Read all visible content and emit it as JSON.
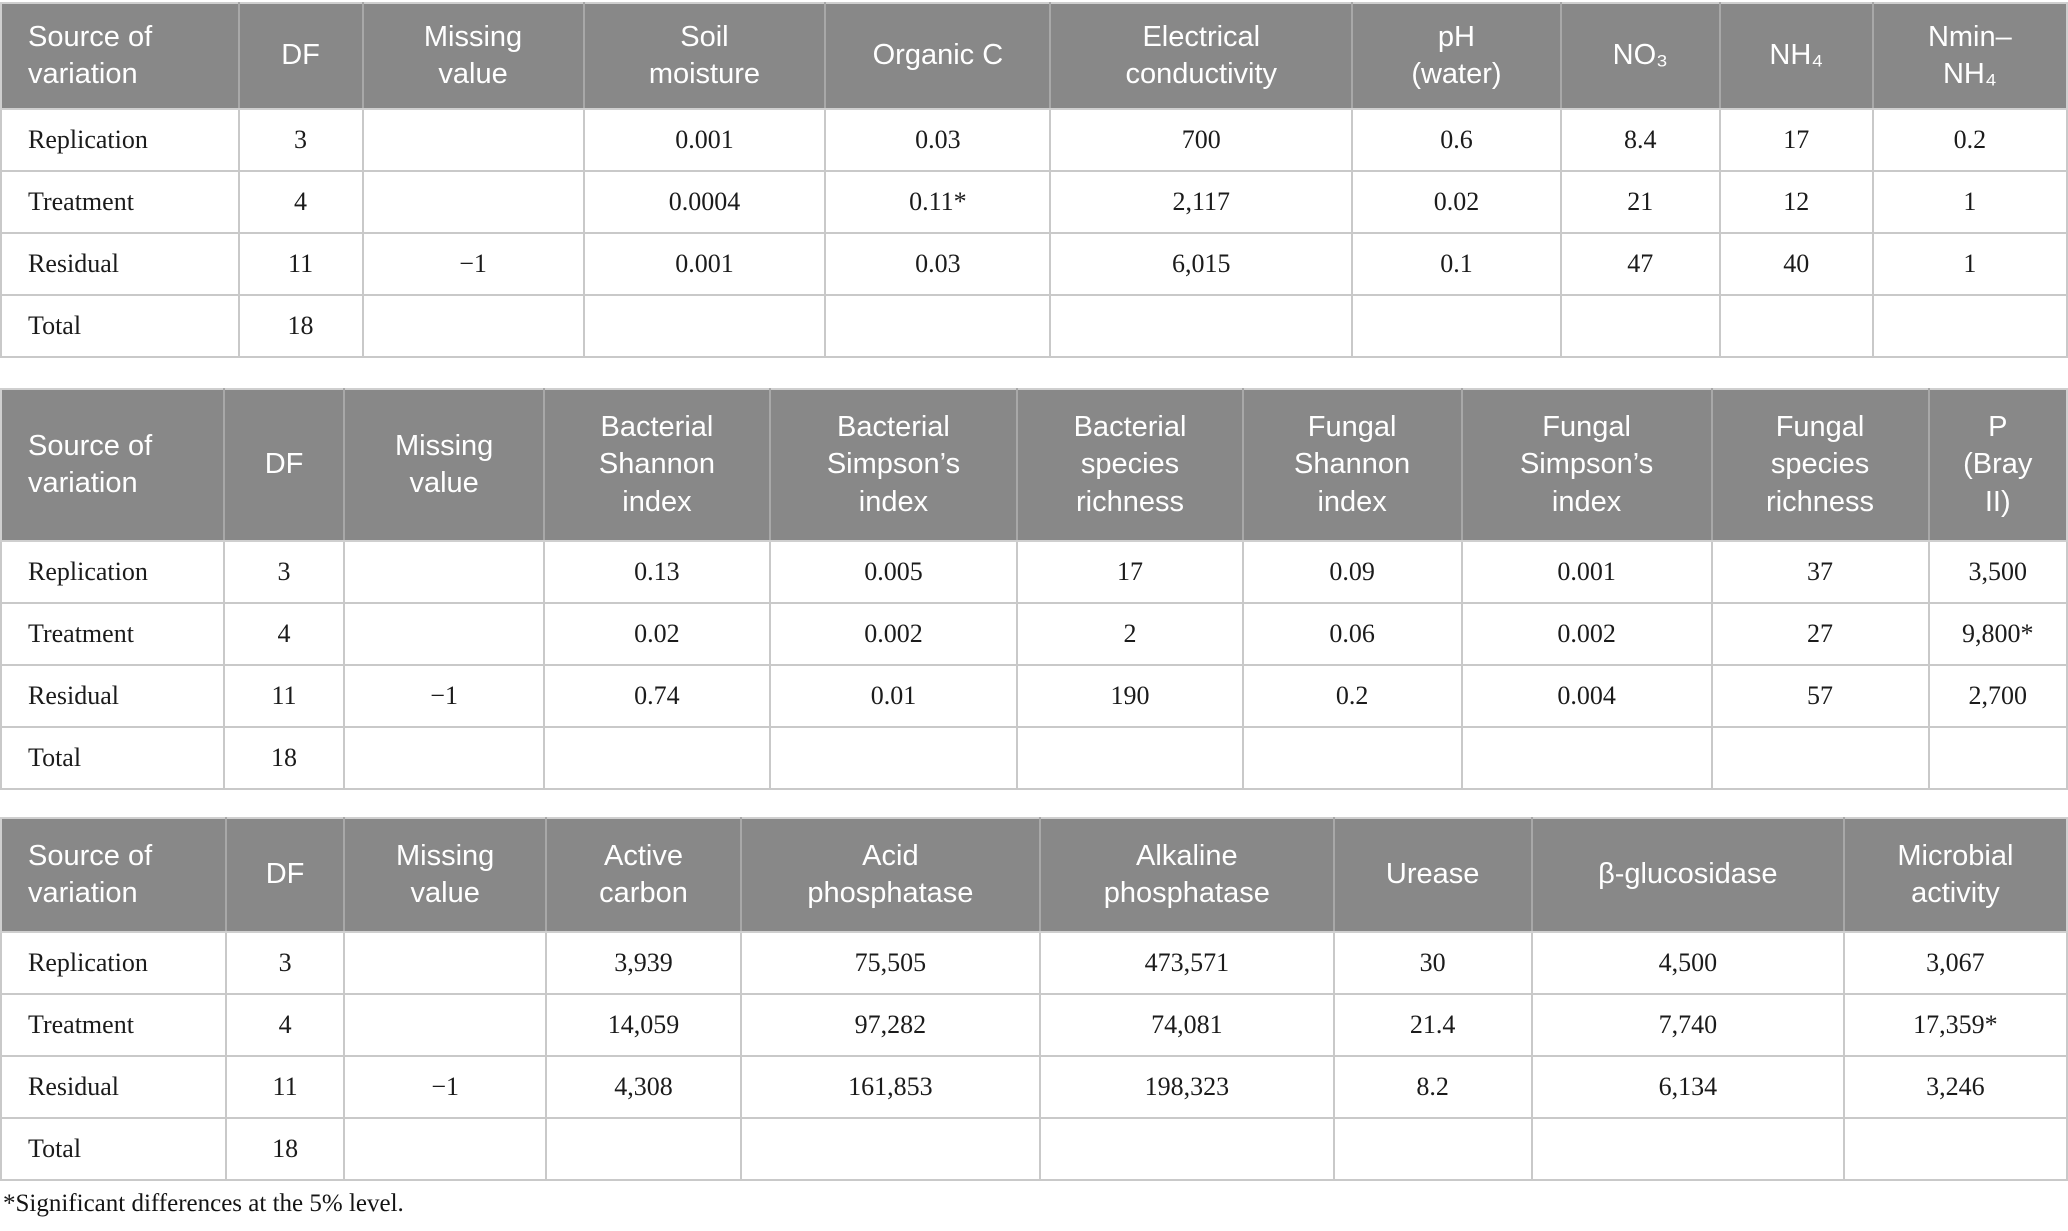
{
  "footnote": "*Significant differences at the 5% level.",
  "colors": {
    "header_background": "#888888",
    "header_text": "#ffffff",
    "body_text": "#1b1b1b",
    "grid_line": "#c9c9c9"
  },
  "tables": [
    {
      "name": "soil-chemical-properties",
      "columns": [
        "Source of\nvariation",
        "DF",
        "Missing\nvalue",
        "Soil\nmoisture",
        "Organic C",
        "Electrical\nconductivity",
        "pH\n(water)",
        "NO₃",
        "NH₄",
        "Nmin–\nNH₄"
      ],
      "rows": [
        [
          "Replication",
          "3",
          "",
          "0.001",
          "0.03",
          "700",
          "0.6",
          "8.4",
          "17",
          "0.2"
        ],
        [
          "Treatment",
          "4",
          "",
          "0.0004",
          "0.11*",
          "2,117",
          "0.02",
          "21",
          "12",
          "1"
        ],
        [
          "Residual",
          "11",
          "−1",
          "0.001",
          "0.03",
          "6,015",
          "0.1",
          "47",
          "40",
          "1"
        ],
        [
          "Total",
          "18",
          "",
          "",
          "",
          "",
          "",
          "",
          "",
          ""
        ]
      ]
    },
    {
      "name": "microbial-diversity",
      "columns": [
        "Source of\nvariation",
        "DF",
        "Missing\nvalue",
        "Bacterial\nShannon\nindex",
        "Bacterial\nSimpson’s\nindex",
        "Bacterial\nspecies\nrichness",
        "Fungal\nShannon\nindex",
        "Fungal\nSimpson’s\nindex",
        "Fungal\nspecies\nrichness",
        "P\n(Bray\nII)"
      ],
      "rows": [
        [
          "Replication",
          "3",
          "",
          "0.13",
          "0.005",
          "17",
          "0.09",
          "0.001",
          "37",
          "3,500"
        ],
        [
          "Treatment",
          "4",
          "",
          "0.02",
          "0.002",
          "2",
          "0.06",
          "0.002",
          "27",
          "9,800*"
        ],
        [
          "Residual",
          "11",
          "−1",
          "0.74",
          "0.01",
          "190",
          "0.2",
          "0.004",
          "57",
          "2,700"
        ],
        [
          "Total",
          "18",
          "",
          "",
          "",
          "",
          "",
          "",
          "",
          ""
        ]
      ]
    },
    {
      "name": "enzyme-activity",
      "columns": [
        "Source of\nvariation",
        "DF",
        "Missing\nvalue",
        "Active\ncarbon",
        "Acid\nphosphatase",
        "Alkaline\nphosphatase",
        "Urease",
        "β-glucosidase",
        "Microbial\nactivity"
      ],
      "rows": [
        [
          "Replication",
          "3",
          "",
          "3,939",
          "75,505",
          "473,571",
          "30",
          "4,500",
          "3,067"
        ],
        [
          "Treatment",
          "4",
          "",
          "14,059",
          "97,282",
          "74,081",
          "21.4",
          "7,740",
          "17,359*"
        ],
        [
          "Residual",
          "11",
          "−1",
          "4,308",
          "161,853",
          "198,323",
          "8.2",
          "6,134",
          "3,246"
        ],
        [
          "Total",
          "18",
          "",
          "",
          "",
          "",
          "",
          "",
          ""
        ]
      ]
    }
  ]
}
